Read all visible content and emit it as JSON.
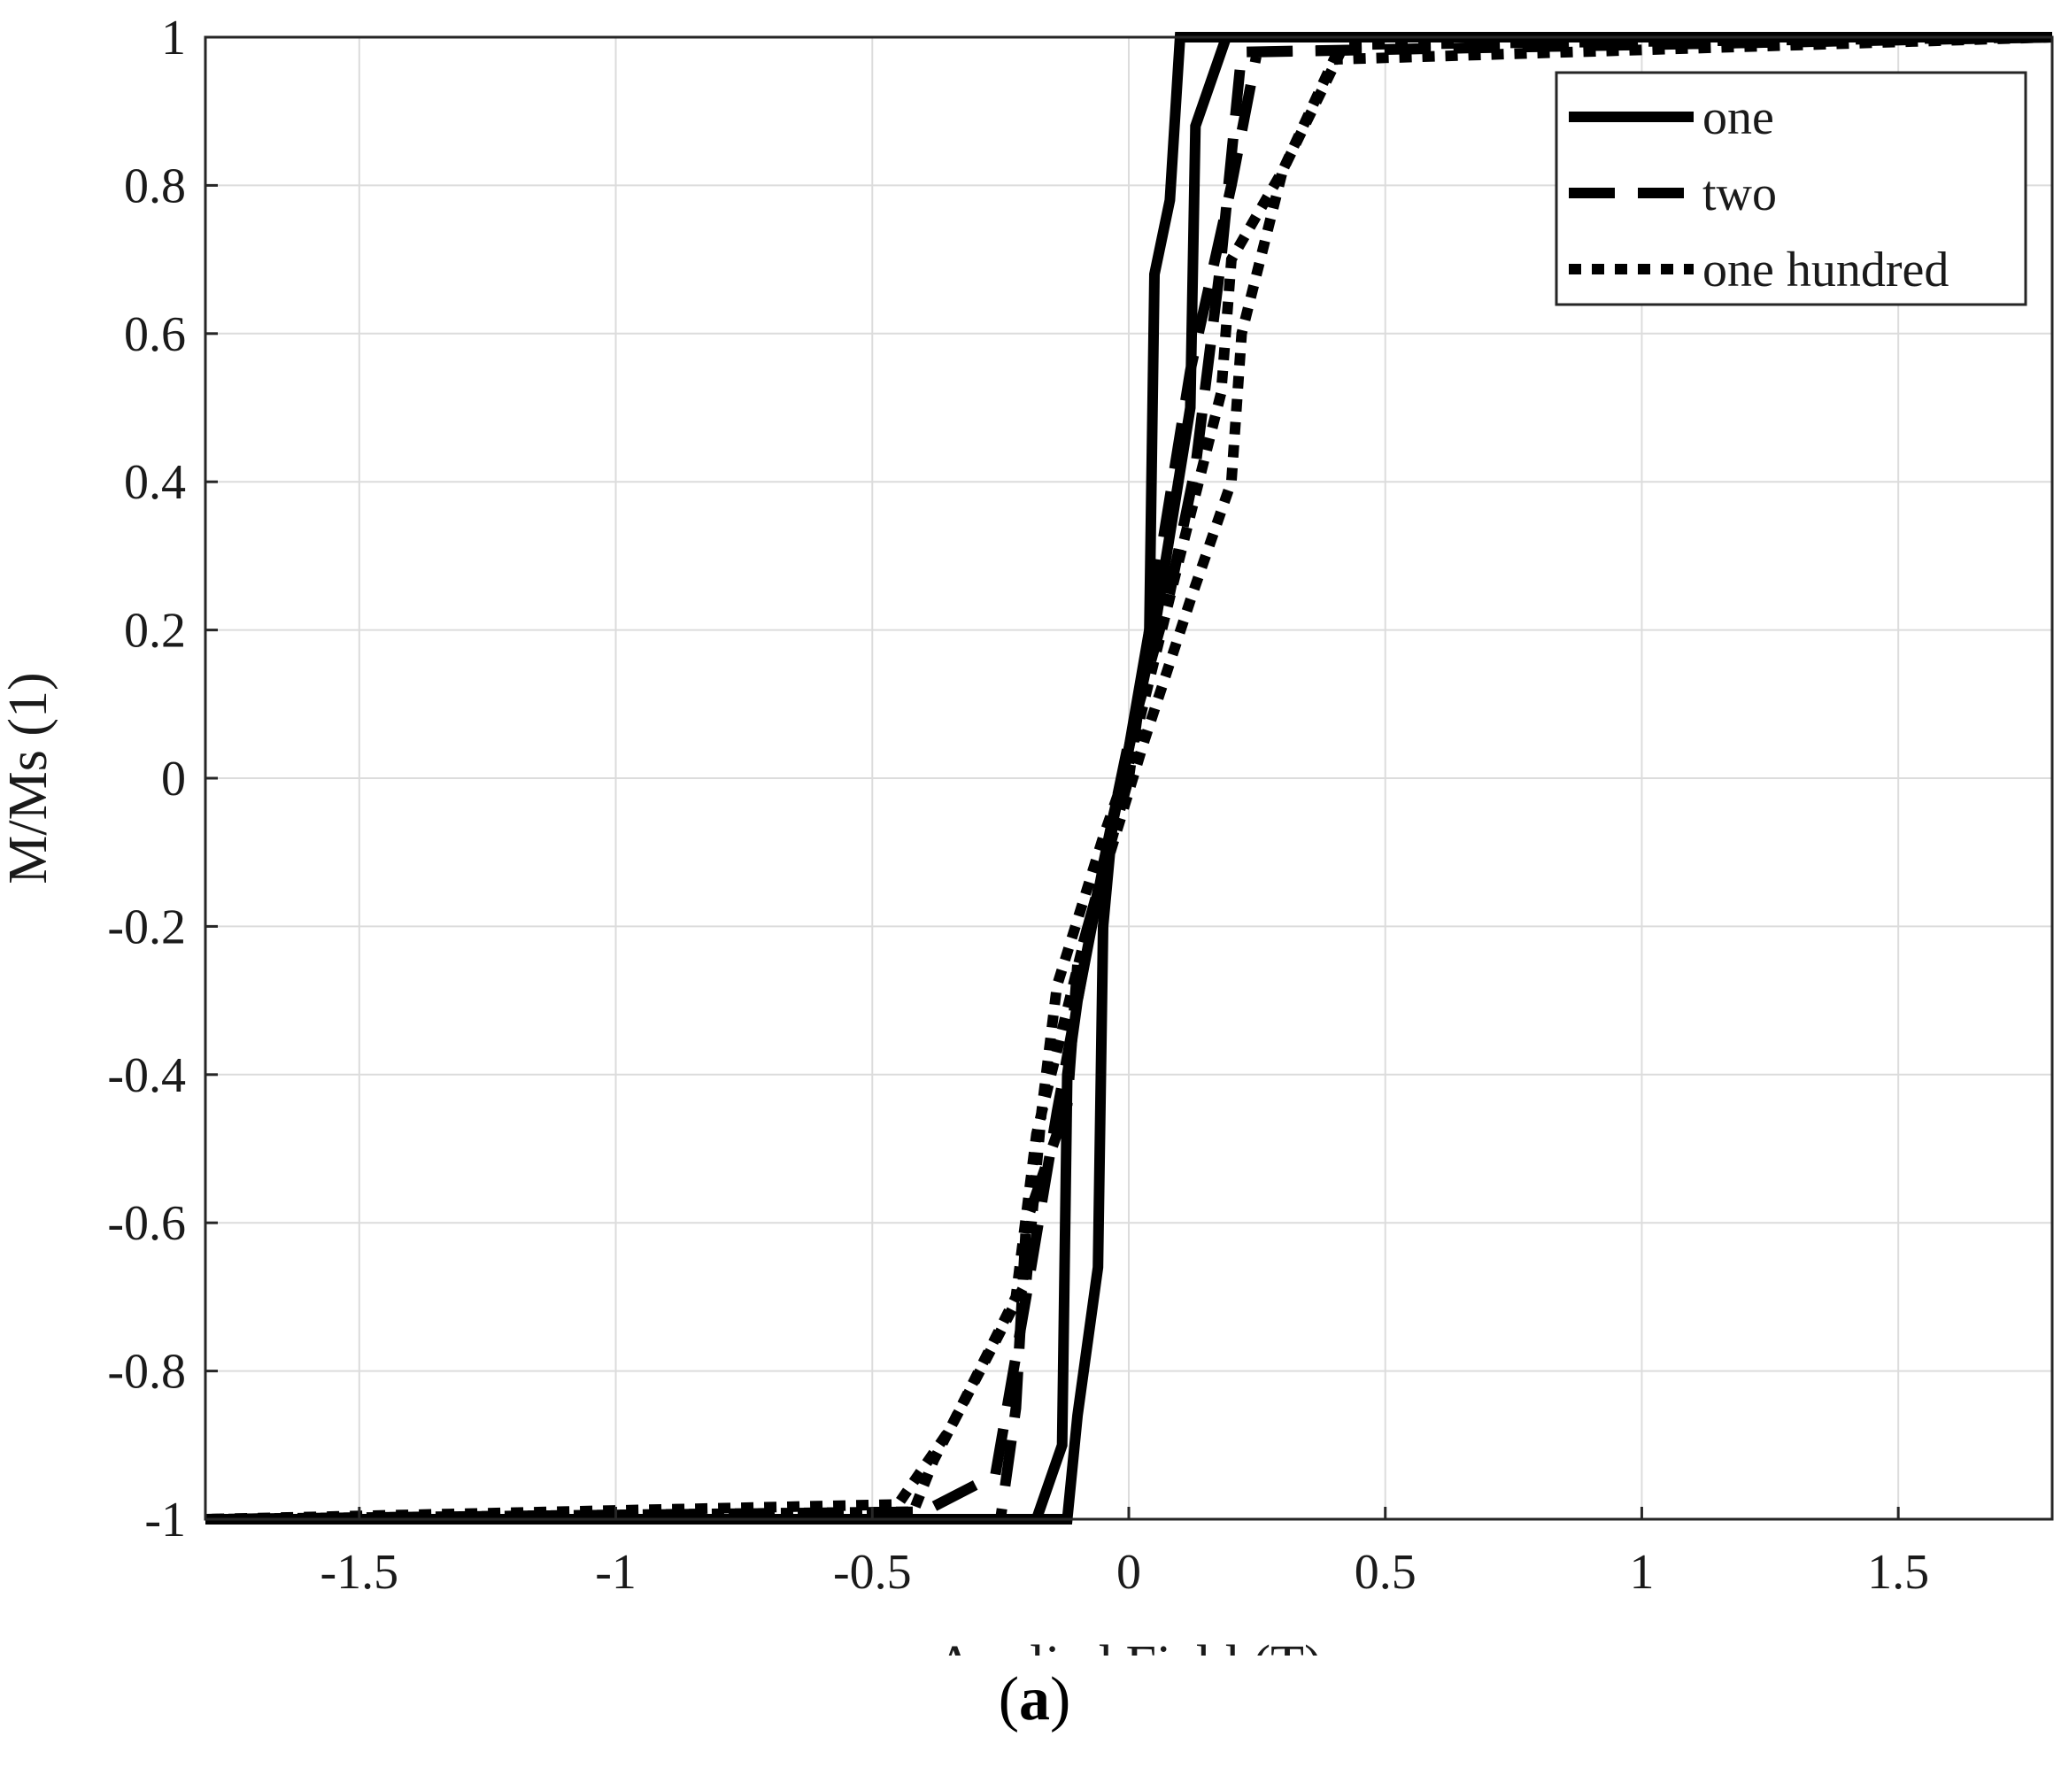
{
  "chart_data": {
    "type": "line",
    "xlabel": "Applied Field (T)",
    "ylabel": "M/Ms (1)",
    "xlim": [
      -1.8,
      1.8
    ],
    "ylim": [
      -1,
      1
    ],
    "xticks": [
      -1.5,
      -1,
      -0.5,
      0,
      0.5,
      1,
      1.5
    ],
    "xtick_labels": [
      "-1.5",
      "-1",
      "-0.5",
      "0",
      "0.5",
      "1",
      "1.5"
    ],
    "yticks": [
      -1,
      -0.8,
      -0.6,
      -0.4,
      -0.2,
      0,
      0.2,
      0.4,
      0.6,
      0.8,
      1
    ],
    "ytick_labels": [
      "-1",
      "-0.8",
      "-0.6",
      "-0.4",
      "-0.2",
      "0",
      "0.2",
      "0.4",
      "0.6",
      "0.8",
      "1"
    ],
    "grid": true,
    "legend_position": "top-right",
    "series": [
      {
        "name": "one",
        "style": "solid",
        "ascending": [
          [
            -1.8,
            -1
          ],
          [
            -0.12,
            -1
          ],
          [
            -0.1,
            -0.86
          ],
          [
            -0.06,
            -0.66
          ],
          [
            -0.05,
            -0.2
          ],
          [
            -0.03,
            -0.05
          ],
          [
            0.0,
            0.04
          ],
          [
            0.04,
            0.2
          ],
          [
            0.05,
            0.68
          ],
          [
            0.08,
            0.78
          ],
          [
            0.1,
            1
          ],
          [
            1.8,
            1
          ]
        ],
        "descending": [
          [
            1.8,
            1
          ],
          [
            0.19,
            1
          ],
          [
            0.13,
            0.88
          ],
          [
            0.12,
            0.5
          ],
          [
            0.05,
            0.2
          ],
          [
            0.0,
            0.04
          ],
          [
            -0.05,
            -0.12
          ],
          [
            -0.1,
            -0.3
          ],
          [
            -0.12,
            -0.4
          ],
          [
            -0.13,
            -0.9
          ],
          [
            -0.18,
            -1
          ],
          [
            -1.8,
            -1
          ]
        ]
      },
      {
        "name": "two",
        "style": "dashed",
        "ascending": [
          [
            -1.8,
            -1
          ],
          [
            -0.25,
            -1
          ],
          [
            -0.22,
            -0.85
          ],
          [
            -0.2,
            -0.6
          ],
          [
            -0.12,
            -0.44
          ],
          [
            -0.1,
            -0.25
          ],
          [
            -0.04,
            -0.1
          ],
          [
            0.0,
            0.0
          ],
          [
            0.05,
            0.25
          ],
          [
            0.12,
            0.55
          ],
          [
            0.2,
            0.8
          ],
          [
            0.25,
            0.98
          ],
          [
            1.8,
            1
          ]
        ],
        "descending": [
          [
            1.8,
            1
          ],
          [
            0.22,
            0.98
          ],
          [
            0.18,
            0.7
          ],
          [
            0.13,
            0.42
          ],
          [
            0.08,
            0.25
          ],
          [
            0.0,
            0.05
          ],
          [
            -0.06,
            -0.15
          ],
          [
            -0.14,
            -0.45
          ],
          [
            -0.2,
            -0.7
          ],
          [
            -0.26,
            -0.94
          ],
          [
            -0.4,
            -0.99
          ],
          [
            -1.8,
            -1
          ]
        ]
      },
      {
        "name": "one hundred",
        "style": "dotted",
        "ascending": [
          [
            -1.8,
            -1
          ],
          [
            -0.42,
            -0.99
          ],
          [
            -0.38,
            -0.92
          ],
          [
            -0.2,
            -0.68
          ],
          [
            -0.17,
            -0.45
          ],
          [
            -0.14,
            -0.28
          ],
          [
            -0.05,
            -0.08
          ],
          [
            0.0,
            0.02
          ],
          [
            0.1,
            0.3
          ],
          [
            0.18,
            0.52
          ],
          [
            0.2,
            0.7
          ],
          [
            0.3,
            0.82
          ],
          [
            0.4,
            0.97
          ],
          [
            1.8,
            1
          ]
        ],
        "descending": [
          [
            1.8,
            1
          ],
          [
            0.42,
            0.99
          ],
          [
            0.3,
            0.82
          ],
          [
            0.22,
            0.6
          ],
          [
            0.2,
            0.4
          ],
          [
            0.12,
            0.24
          ],
          [
            0.03,
            0.05
          ],
          [
            -0.08,
            -0.2
          ],
          [
            -0.18,
            -0.48
          ],
          [
            -0.22,
            -0.7
          ],
          [
            -0.35,
            -0.88
          ],
          [
            -0.45,
            -0.98
          ],
          [
            -1.8,
            -1
          ]
        ]
      }
    ]
  },
  "panel_label": {
    "open": "(",
    "letter": "a",
    "close": ")"
  }
}
